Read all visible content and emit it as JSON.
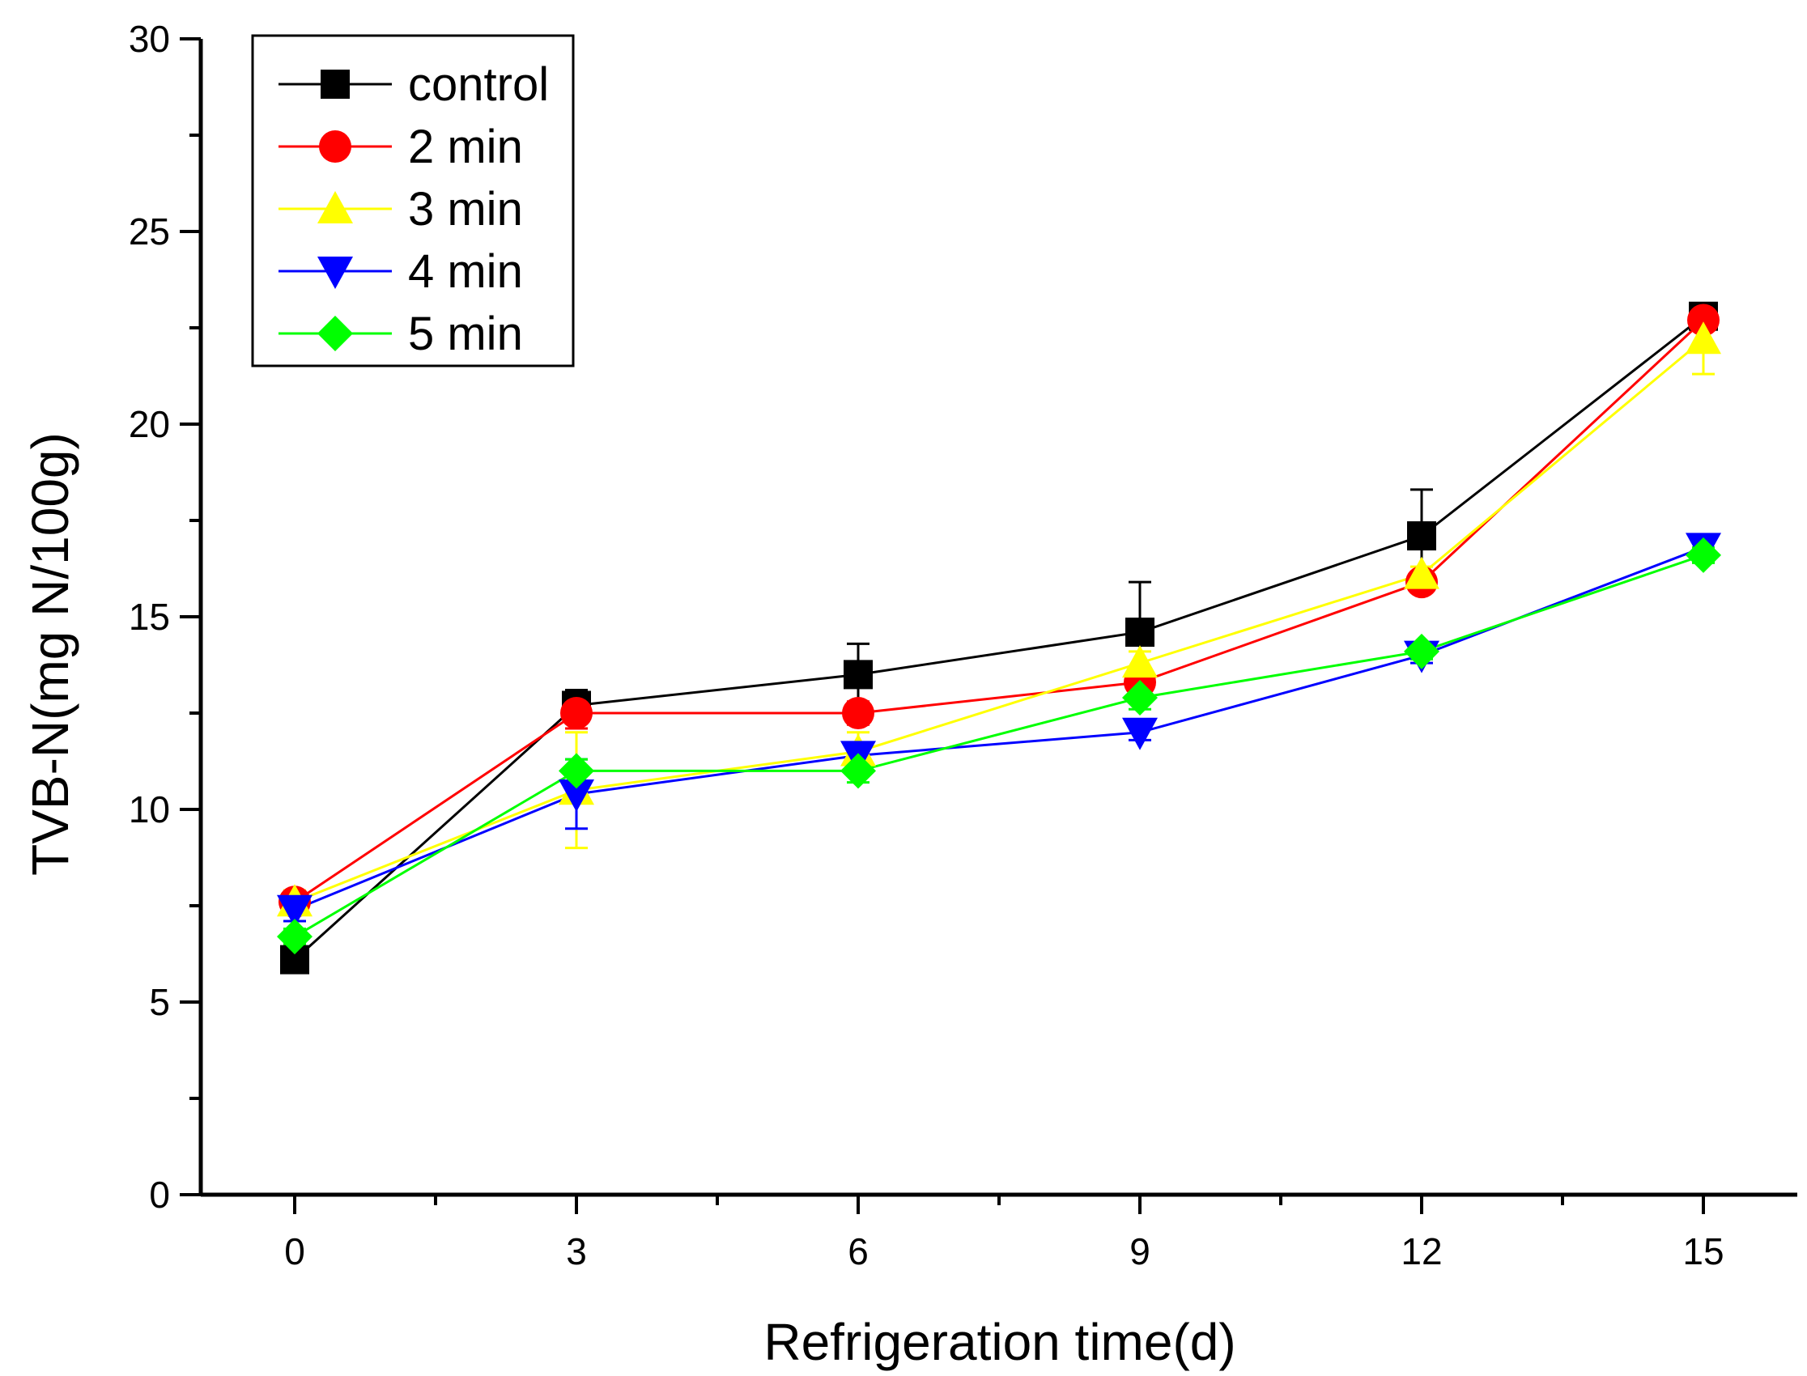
{
  "chart_data": {
    "type": "line",
    "title": "",
    "xlabel": "Refrigeration time(d)",
    "ylabel": "TVB-N(mg N/100g)",
    "x": [
      0,
      3,
      6,
      9,
      12,
      15
    ],
    "xticks": [
      "0",
      "3",
      "6",
      "9",
      "12",
      "15"
    ],
    "yticks": [
      "0",
      "5",
      "10",
      "15",
      "20",
      "25",
      "30"
    ],
    "xlim": [
      -1,
      16
    ],
    "ylim": [
      0,
      30
    ],
    "grid": false,
    "legend_position": "top-left",
    "series": [
      {
        "name": "control",
        "color": "#000000",
        "marker": "square",
        "values": [
          6.1,
          12.7,
          13.5,
          14.6,
          17.1,
          22.8
        ],
        "errors": [
          0.2,
          0.4,
          0.8,
          1.3,
          1.2,
          0.2
        ]
      },
      {
        "name": "2 min",
        "color": "#ff0000",
        "marker": "circle",
        "values": [
          7.6,
          12.5,
          12.5,
          13.3,
          15.9,
          22.7
        ],
        "errors": [
          0.3,
          0.4,
          0.3,
          0.3,
          0.2,
          0.2
        ]
      },
      {
        "name": "3 min",
        "color": "#ffff00",
        "marker": "triangle-up",
        "values": [
          7.6,
          10.5,
          11.5,
          13.8,
          16.1,
          22.2
        ],
        "errors": [
          0.3,
          1.5,
          0.5,
          0.3,
          0.2,
          0.9
        ]
      },
      {
        "name": "4 min",
        "color": "#0000ff",
        "marker": "triangle-down",
        "values": [
          7.4,
          10.4,
          11.4,
          12.0,
          14.0,
          16.8
        ],
        "errors": [
          0.3,
          0.9,
          0.3,
          0.2,
          0.2,
          0.2
        ]
      },
      {
        "name": "5 min",
        "color": "#00ff00",
        "marker": "diamond",
        "values": [
          6.7,
          11.0,
          11.0,
          12.9,
          14.1,
          16.6
        ],
        "errors": [
          0.2,
          0.3,
          0.3,
          0.3,
          0.2,
          0.2
        ]
      }
    ]
  }
}
